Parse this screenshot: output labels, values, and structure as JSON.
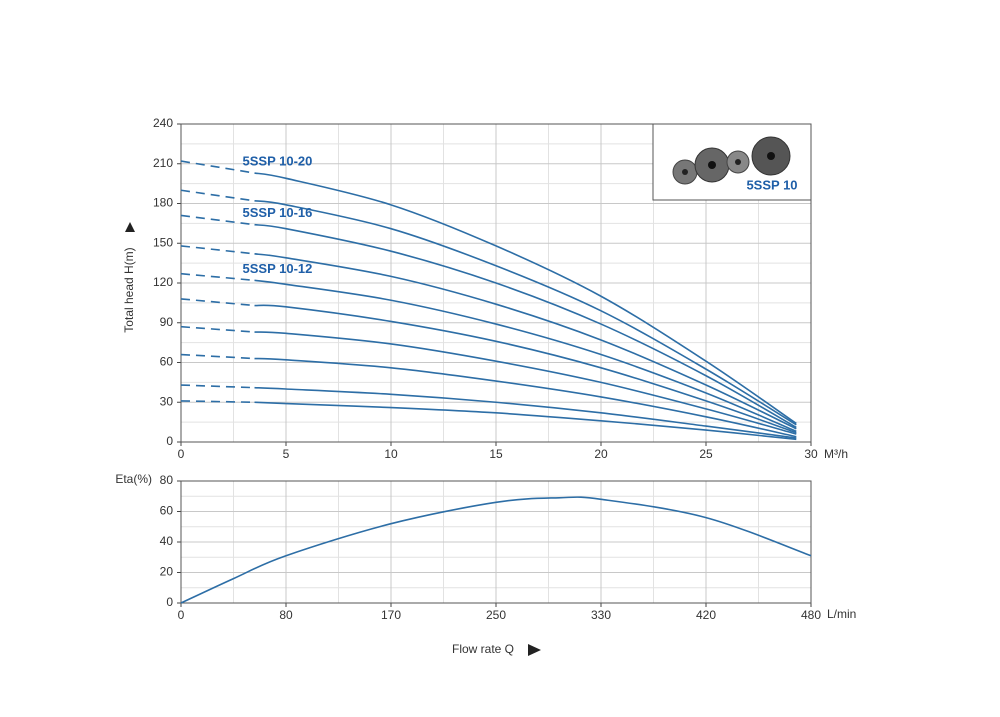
{
  "chart_data": [
    {
      "type": "line",
      "y_label": "Total head H(m)",
      "x_unit": "M³/h",
      "inset_label": "5SSP 10",
      "x": [
        0,
        3.5,
        5,
        10,
        15,
        20,
        25,
        29.3
      ],
      "xlim": [
        0,
        30
      ],
      "xticks": [
        0,
        5,
        10,
        15,
        20,
        25,
        30
      ],
      "ylim": [
        0,
        240
      ],
      "yticks": [
        0,
        30,
        60,
        90,
        120,
        150,
        180,
        210,
        240
      ],
      "grid": true,
      "color": "#2d6ea6",
      "series": [
        {
          "name": "5SSP 10-20",
          "values": [
            212,
            203,
            199,
            179,
            148,
            110,
            61,
            14
          ]
        },
        {
          "values": [
            190,
            182,
            179,
            161,
            133,
            99,
            55,
            13
          ]
        },
        {
          "name": "5SSP 10-16",
          "values": [
            171,
            164,
            161,
            144,
            120,
            89,
            50,
            11
          ]
        },
        {
          "values": [
            148,
            142,
            139,
            125,
            104,
            77,
            43,
            10
          ]
        },
        {
          "name": "5SSP 10-12",
          "values": [
            127,
            122,
            119,
            107,
            89,
            66,
            37,
            8
          ]
        },
        {
          "values": [
            108,
            103,
            102,
            91,
            76,
            56,
            31,
            7
          ]
        },
        {
          "values": [
            87,
            83,
            82,
            74,
            61,
            45,
            25,
            6
          ]
        },
        {
          "values": [
            66,
            63,
            62,
            56,
            46,
            34,
            19,
            4
          ]
        },
        {
          "values": [
            43,
            41,
            40,
            36,
            30,
            22,
            12,
            3
          ]
        },
        {
          "values": [
            31,
            30,
            29,
            26,
            22,
            16,
            9,
            2
          ]
        }
      ]
    },
    {
      "type": "line",
      "y_label": "Eta(%)",
      "x_unit": "L/min",
      "x_label": "Flow rate Q",
      "x": [
        0,
        2.5,
        5,
        10,
        15,
        18,
        20,
        25,
        30
      ],
      "xlim": [
        0,
        30
      ],
      "xticks": [
        {
          "value": 0,
          "label": "0"
        },
        {
          "value": 5,
          "label": "80"
        },
        {
          "value": 10,
          "label": "170"
        },
        {
          "value": 15,
          "label": "250"
        },
        {
          "value": 20,
          "label": "330"
        },
        {
          "value": 25,
          "label": "420"
        },
        {
          "value": 30,
          "label": "480"
        }
      ],
      "ylim": [
        0,
        80
      ],
      "yticks": [
        0,
        20,
        40,
        60,
        80
      ],
      "grid": true,
      "color": "#2d6ea6",
      "series": [
        {
          "values": [
            0,
            16,
            31,
            52,
            66,
            69,
            68,
            56,
            31
          ]
        }
      ]
    }
  ]
}
